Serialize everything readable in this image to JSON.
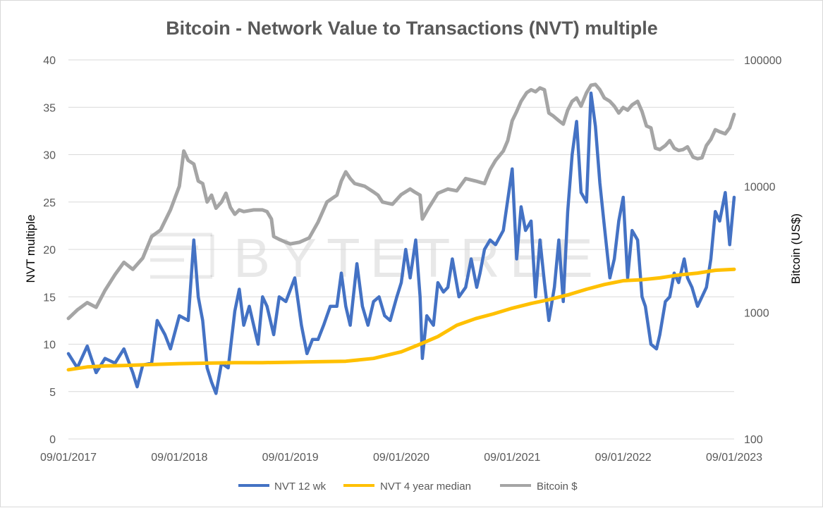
{
  "chart_data": {
    "type": "line",
    "title": "Bitcoin - Network Value to Transactions (NVT) multiple",
    "watermark": "BYTETREE",
    "x_tick_labels": [
      "09/01/2017",
      "09/01/2018",
      "09/01/2019",
      "09/01/2020",
      "09/01/2021",
      "09/01/2022",
      "09/01/2023"
    ],
    "x_range": [
      2017.0,
      2023.0
    ],
    "y_left": {
      "label": "NVT multiple",
      "range": [
        0,
        40
      ],
      "ticks": [
        0,
        5,
        10,
        15,
        20,
        25,
        30,
        35,
        40
      ],
      "tick_labels": [
        "0",
        "5",
        "10",
        "15",
        "20",
        "25",
        "30",
        "35",
        "40"
      ]
    },
    "y_right": {
      "label": "Bitcoin (US$)",
      "scale": "log",
      "range": [
        100,
        100000
      ],
      "ticks": [
        100,
        1000,
        10000,
        100000
      ],
      "tick_labels": [
        "100",
        "1000",
        "10000",
        "100000"
      ]
    },
    "legend": {
      "position": "bottom"
    },
    "series": [
      {
        "name": "NVT 12 wk",
        "axis": "left",
        "color": "#4472C4",
        "points": [
          [
            2017.0,
            9
          ],
          [
            2017.08,
            7.5
          ],
          [
            2017.17,
            9.8
          ],
          [
            2017.25,
            7
          ],
          [
            2017.33,
            8.5
          ],
          [
            2017.42,
            8
          ],
          [
            2017.5,
            9.5
          ],
          [
            2017.58,
            7
          ],
          [
            2017.62,
            5.5
          ],
          [
            2017.67,
            7.8
          ],
          [
            2017.75,
            8
          ],
          [
            2017.8,
            12.5
          ],
          [
            2017.87,
            11
          ],
          [
            2017.92,
            9.5
          ],
          [
            2018.0,
            13
          ],
          [
            2018.08,
            12.5
          ],
          [
            2018.13,
            21
          ],
          [
            2018.17,
            15
          ],
          [
            2018.21,
            12.5
          ],
          [
            2018.25,
            7.5
          ],
          [
            2018.29,
            6
          ],
          [
            2018.33,
            4.8
          ],
          [
            2018.38,
            8
          ],
          [
            2018.44,
            7.5
          ],
          [
            2018.5,
            13.5
          ],
          [
            2018.54,
            15.8
          ],
          [
            2018.58,
            12
          ],
          [
            2018.63,
            14
          ],
          [
            2018.67,
            12
          ],
          [
            2018.71,
            10
          ],
          [
            2018.75,
            15
          ],
          [
            2018.79,
            14
          ],
          [
            2018.85,
            11
          ],
          [
            2018.9,
            15
          ],
          [
            2018.96,
            14.5
          ],
          [
            2019.04,
            17
          ],
          [
            2019.1,
            12
          ],
          [
            2019.15,
            9
          ],
          [
            2019.2,
            10.5
          ],
          [
            2019.25,
            10.5
          ],
          [
            2019.3,
            12
          ],
          [
            2019.36,
            14
          ],
          [
            2019.42,
            14
          ],
          [
            2019.46,
            17.5
          ],
          [
            2019.5,
            14
          ],
          [
            2019.54,
            12
          ],
          [
            2019.6,
            18.5
          ],
          [
            2019.65,
            14
          ],
          [
            2019.7,
            12
          ],
          [
            2019.75,
            14.5
          ],
          [
            2019.8,
            15
          ],
          [
            2019.85,
            13
          ],
          [
            2019.9,
            12.5
          ],
          [
            2019.96,
            15
          ],
          [
            2020.0,
            16.5
          ],
          [
            2020.04,
            20
          ],
          [
            2020.08,
            17
          ],
          [
            2020.13,
            21
          ],
          [
            2020.17,
            15
          ],
          [
            2020.19,
            8.5
          ],
          [
            2020.23,
            13
          ],
          [
            2020.29,
            12
          ],
          [
            2020.33,
            16.5
          ],
          [
            2020.38,
            15.5
          ],
          [
            2020.42,
            16
          ],
          [
            2020.46,
            19
          ],
          [
            2020.52,
            15
          ],
          [
            2020.58,
            16
          ],
          [
            2020.63,
            19
          ],
          [
            2020.68,
            16
          ],
          [
            2020.71,
            17.5
          ],
          [
            2020.75,
            20
          ],
          [
            2020.8,
            21
          ],
          [
            2020.85,
            20.5
          ],
          [
            2020.92,
            22
          ],
          [
            2021.0,
            28.5
          ],
          [
            2021.04,
            19
          ],
          [
            2021.08,
            24.5
          ],
          [
            2021.12,
            22
          ],
          [
            2021.17,
            23
          ],
          [
            2021.21,
            15
          ],
          [
            2021.25,
            21
          ],
          [
            2021.29,
            16.5
          ],
          [
            2021.33,
            12.5
          ],
          [
            2021.38,
            16
          ],
          [
            2021.42,
            21
          ],
          [
            2021.46,
            14.5
          ],
          [
            2021.5,
            24
          ],
          [
            2021.54,
            30
          ],
          [
            2021.58,
            33.5
          ],
          [
            2021.62,
            26
          ],
          [
            2021.67,
            25
          ],
          [
            2021.71,
            36.5
          ],
          [
            2021.75,
            33
          ],
          [
            2021.79,
            27
          ],
          [
            2021.83,
            22.5
          ],
          [
            2021.88,
            17
          ],
          [
            2021.92,
            19
          ],
          [
            2021.96,
            23
          ],
          [
            2022.0,
            25.5
          ],
          [
            2022.04,
            17
          ],
          [
            2022.08,
            22
          ],
          [
            2022.13,
            21
          ],
          [
            2022.17,
            15
          ],
          [
            2022.2,
            14
          ],
          [
            2022.25,
            10
          ],
          [
            2022.3,
            9.5
          ],
          [
            2022.33,
            11
          ],
          [
            2022.38,
            14.5
          ],
          [
            2022.42,
            15
          ],
          [
            2022.46,
            17.5
          ],
          [
            2022.5,
            16.5
          ],
          [
            2022.55,
            19
          ],
          [
            2022.58,
            17
          ],
          [
            2022.62,
            16
          ],
          [
            2022.67,
            14
          ],
          [
            2022.71,
            15
          ],
          [
            2022.75,
            16
          ],
          [
            2022.79,
            19
          ],
          [
            2022.83,
            24
          ],
          [
            2022.87,
            23
          ],
          [
            2022.92,
            26
          ],
          [
            2022.96,
            20.5
          ],
          [
            2023.0,
            25.5
          ]
        ]
      },
      {
        "name": "NVT 4 year median",
        "axis": "left",
        "color": "#FFC000",
        "points": [
          [
            2017.0,
            7.3
          ],
          [
            2017.17,
            7.6
          ],
          [
            2017.33,
            7.7
          ],
          [
            2017.5,
            7.75
          ],
          [
            2017.75,
            7.85
          ],
          [
            2018.0,
            7.95
          ],
          [
            2018.25,
            8.0
          ],
          [
            2018.5,
            8.05
          ],
          [
            2018.75,
            8.05
          ],
          [
            2019.0,
            8.1
          ],
          [
            2019.25,
            8.15
          ],
          [
            2019.5,
            8.2
          ],
          [
            2019.75,
            8.5
          ],
          [
            2020.0,
            9.2
          ],
          [
            2020.17,
            10
          ],
          [
            2020.33,
            10.8
          ],
          [
            2020.5,
            12
          ],
          [
            2020.67,
            12.7
          ],
          [
            2020.83,
            13.2
          ],
          [
            2021.0,
            13.8
          ],
          [
            2021.17,
            14.3
          ],
          [
            2021.33,
            14.7
          ],
          [
            2021.5,
            15.2
          ],
          [
            2021.67,
            15.8
          ],
          [
            2021.83,
            16.3
          ],
          [
            2022.0,
            16.7
          ],
          [
            2022.17,
            16.8
          ],
          [
            2022.33,
            17.0
          ],
          [
            2022.5,
            17.3
          ],
          [
            2022.67,
            17.5
          ],
          [
            2022.83,
            17.8
          ],
          [
            2023.0,
            17.9
          ]
        ]
      },
      {
        "name": "Bitcoin $",
        "axis": "right",
        "color": "#A5A5A5",
        "points": [
          [
            2017.0,
            900
          ],
          [
            2017.08,
            1050
          ],
          [
            2017.17,
            1200
          ],
          [
            2017.25,
            1100
          ],
          [
            2017.33,
            1500
          ],
          [
            2017.42,
            2000
          ],
          [
            2017.5,
            2500
          ],
          [
            2017.58,
            2200
          ],
          [
            2017.67,
            2700
          ],
          [
            2017.75,
            4000
          ],
          [
            2017.83,
            4500
          ],
          [
            2017.92,
            6500
          ],
          [
            2018.0,
            10000
          ],
          [
            2018.04,
            19000
          ],
          [
            2018.08,
            16000
          ],
          [
            2018.13,
            15000
          ],
          [
            2018.17,
            11000
          ],
          [
            2018.21,
            10500
          ],
          [
            2018.25,
            7500
          ],
          [
            2018.29,
            8500
          ],
          [
            2018.33,
            6700
          ],
          [
            2018.38,
            7500
          ],
          [
            2018.42,
            8800
          ],
          [
            2018.46,
            6800
          ],
          [
            2018.5,
            6000
          ],
          [
            2018.54,
            6500
          ],
          [
            2018.58,
            6300
          ],
          [
            2018.67,
            6500
          ],
          [
            2018.75,
            6500
          ],
          [
            2018.79,
            6300
          ],
          [
            2018.83,
            5500
          ],
          [
            2018.85,
            4000
          ],
          [
            2018.9,
            3800
          ],
          [
            2018.96,
            3600
          ],
          [
            2019.0,
            3500
          ],
          [
            2019.08,
            3600
          ],
          [
            2019.17,
            3900
          ],
          [
            2019.25,
            5200
          ],
          [
            2019.33,
            7500
          ],
          [
            2019.42,
            8500
          ],
          [
            2019.46,
            11000
          ],
          [
            2019.5,
            13000
          ],
          [
            2019.54,
            11500
          ],
          [
            2019.58,
            10500
          ],
          [
            2019.67,
            10000
          ],
          [
            2019.75,
            9000
          ],
          [
            2019.79,
            8500
          ],
          [
            2019.83,
            7500
          ],
          [
            2019.92,
            7200
          ],
          [
            2020.0,
            8600
          ],
          [
            2020.08,
            9500
          ],
          [
            2020.12,
            9000
          ],
          [
            2020.17,
            8500
          ],
          [
            2020.19,
            5500
          ],
          [
            2020.25,
            6800
          ],
          [
            2020.33,
            8800
          ],
          [
            2020.42,
            9500
          ],
          [
            2020.5,
            9200
          ],
          [
            2020.58,
            11500
          ],
          [
            2020.67,
            11000
          ],
          [
            2020.75,
            10500
          ],
          [
            2020.8,
            13500
          ],
          [
            2020.85,
            16000
          ],
          [
            2020.92,
            19000
          ],
          [
            2020.96,
            23000
          ],
          [
            2021.0,
            33000
          ],
          [
            2021.04,
            39000
          ],
          [
            2021.08,
            47000
          ],
          [
            2021.13,
            55000
          ],
          [
            2021.17,
            58000
          ],
          [
            2021.21,
            56000
          ],
          [
            2021.25,
            60000
          ],
          [
            2021.29,
            58000
          ],
          [
            2021.33,
            38000
          ],
          [
            2021.37,
            36000
          ],
          [
            2021.42,
            33000
          ],
          [
            2021.46,
            31000
          ],
          [
            2021.5,
            40000
          ],
          [
            2021.54,
            47000
          ],
          [
            2021.58,
            50000
          ],
          [
            2021.62,
            43000
          ],
          [
            2021.67,
            55000
          ],
          [
            2021.71,
            63000
          ],
          [
            2021.75,
            64000
          ],
          [
            2021.79,
            58000
          ],
          [
            2021.83,
            50000
          ],
          [
            2021.88,
            47000
          ],
          [
            2021.92,
            43000
          ],
          [
            2021.96,
            38000
          ],
          [
            2022.0,
            42000
          ],
          [
            2022.04,
            40000
          ],
          [
            2022.08,
            44000
          ],
          [
            2022.13,
            47000
          ],
          [
            2022.17,
            39000
          ],
          [
            2022.21,
            30000
          ],
          [
            2022.25,
            29000
          ],
          [
            2022.29,
            20000
          ],
          [
            2022.33,
            19500
          ],
          [
            2022.38,
            21000
          ],
          [
            2022.42,
            23000
          ],
          [
            2022.46,
            20000
          ],
          [
            2022.5,
            19200
          ],
          [
            2022.54,
            19500
          ],
          [
            2022.58,
            20500
          ],
          [
            2022.63,
            17000
          ],
          [
            2022.67,
            16500
          ],
          [
            2022.71,
            16800
          ],
          [
            2022.75,
            21000
          ],
          [
            2022.79,
            23500
          ],
          [
            2022.83,
            28000
          ],
          [
            2022.87,
            27000
          ],
          [
            2022.92,
            26000
          ],
          [
            2022.96,
            29000
          ],
          [
            2023.0,
            37000
          ]
        ]
      }
    ]
  }
}
